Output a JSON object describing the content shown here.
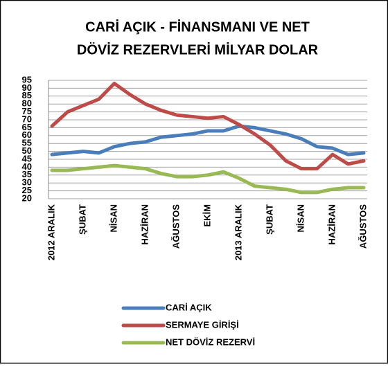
{
  "chart_data": {
    "type": "line",
    "title": [
      "CARİ AÇIK - FİNANSMANI VE NET",
      "DÖVİZ REZERVLERİ  MİLYAR DOLAR"
    ],
    "categories": [
      "2012 ARALIK",
      null,
      "ŞUBAT",
      null,
      "NİSAN",
      null,
      "HAZİRAN",
      null,
      "AĞUSTOS",
      null,
      "EKİM",
      null,
      "2013 ARALIK",
      null,
      "ŞUBAT",
      null,
      "NİSAN",
      null,
      "HAZİRAN",
      null,
      "AĞUSTOS"
    ],
    "series": [
      {
        "name": "CARİ AÇIK",
        "color": "#4a7ebb",
        "values": [
          48,
          49,
          50,
          49,
          53,
          55,
          56,
          59,
          60,
          61,
          63,
          63,
          66,
          65,
          63,
          61,
          58,
          53,
          52,
          48,
          49
        ]
      },
      {
        "name": "SERMAYE GİRİŞİ",
        "color": "#be4b48",
        "values": [
          66,
          75,
          79,
          83,
          93,
          86,
          80,
          76,
          73,
          72,
          71,
          72,
          67,
          61,
          54,
          44,
          39,
          39,
          48,
          42,
          44
        ]
      },
      {
        "name": "NET DÖVİZ REZERVİ",
        "color": "#98b954",
        "values": [
          38,
          38,
          39,
          40,
          41,
          40,
          39,
          36,
          34,
          34,
          35,
          37,
          33,
          28,
          27,
          26,
          24,
          24,
          26,
          27,
          27
        ]
      }
    ],
    "ylim": [
      20,
      95
    ],
    "yticks": [
      20,
      25,
      30,
      35,
      40,
      45,
      50,
      55,
      60,
      65,
      70,
      75,
      80,
      85,
      90,
      95
    ],
    "grid": true
  }
}
